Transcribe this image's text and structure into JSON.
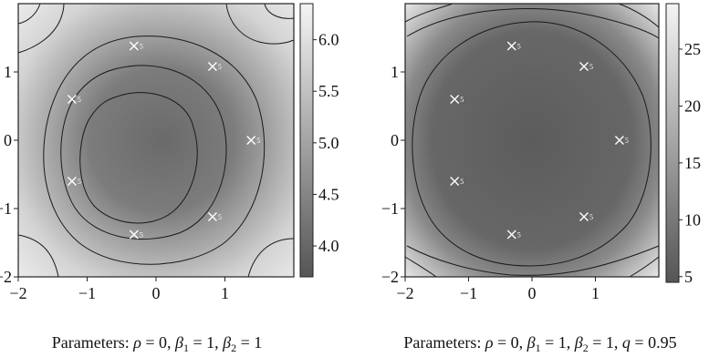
{
  "chart_data": [
    {
      "type": "heatmap",
      "title": "",
      "xlabel": "",
      "ylabel": "",
      "xlim": [
        -2,
        2
      ],
      "ylim": [
        -2,
        2
      ],
      "xticks": [
        "−2",
        "−1",
        "0",
        "1"
      ],
      "yticks": [
        "−2",
        "−1",
        "0",
        "1"
      ],
      "colorbar": {
        "min": 3.7,
        "max": 6.35,
        "ticks": [
          "4.0",
          "4.5",
          "5.0",
          "5.5",
          "6.0"
        ],
        "tick_values": [
          4.0,
          4.5,
          5.0,
          5.5,
          6.0
        ]
      },
      "contour_levels": [
        4,
        4.5,
        5,
        5.5,
        6
      ],
      "markers": [
        {
          "x": -0.32,
          "y": 1.38,
          "label": "5"
        },
        {
          "x": 0.82,
          "y": 1.08,
          "label": "5"
        },
        {
          "x": -1.22,
          "y": 0.6,
          "label": "5"
        },
        {
          "x": 1.38,
          "y": 0.0,
          "label": "5"
        },
        {
          "x": -1.22,
          "y": -0.6,
          "label": "5"
        },
        {
          "x": 0.82,
          "y": -1.12,
          "label": "5"
        },
        {
          "x": -0.32,
          "y": -1.38,
          "label": "5"
        }
      ],
      "caption_prefix": "Parameters: ",
      "caption": "ρ = 0, β1 = 1, β2 = 1",
      "center_value": 3.9,
      "corner_value": 6.2
    },
    {
      "type": "heatmap",
      "title": "",
      "xlabel": "",
      "ylabel": "",
      "xlim": [
        -2,
        2
      ],
      "ylim": [
        -2,
        2
      ],
      "xticks": [
        "−2",
        "−1",
        "0",
        "1"
      ],
      "yticks": [
        "−2",
        "−1",
        "0",
        "1"
      ],
      "colorbar": {
        "min": 4.5,
        "max": 29,
        "ticks": [
          "5",
          "10",
          "15",
          "20",
          "25"
        ],
        "tick_values": [
          5,
          10,
          15,
          20,
          25
        ]
      },
      "contour_levels": [
        10,
        15,
        20,
        25
      ],
      "markers": [
        {
          "x": -0.32,
          "y": 1.38,
          "label": "5"
        },
        {
          "x": 0.82,
          "y": 1.08,
          "label": "5"
        },
        {
          "x": -1.22,
          "y": 0.6,
          "label": "5"
        },
        {
          "x": 1.38,
          "y": 0.0,
          "label": "5"
        },
        {
          "x": -1.22,
          "y": -0.6,
          "label": "5"
        },
        {
          "x": 0.82,
          "y": -1.12,
          "label": "5"
        },
        {
          "x": -0.32,
          "y": -1.38,
          "label": "5"
        }
      ],
      "caption_prefix": "Parameters: ",
      "caption": "ρ = 0, β1 = 1, β2 = 1, q = 0.95",
      "center_value": 5.5,
      "corner_value": 28
    }
  ]
}
